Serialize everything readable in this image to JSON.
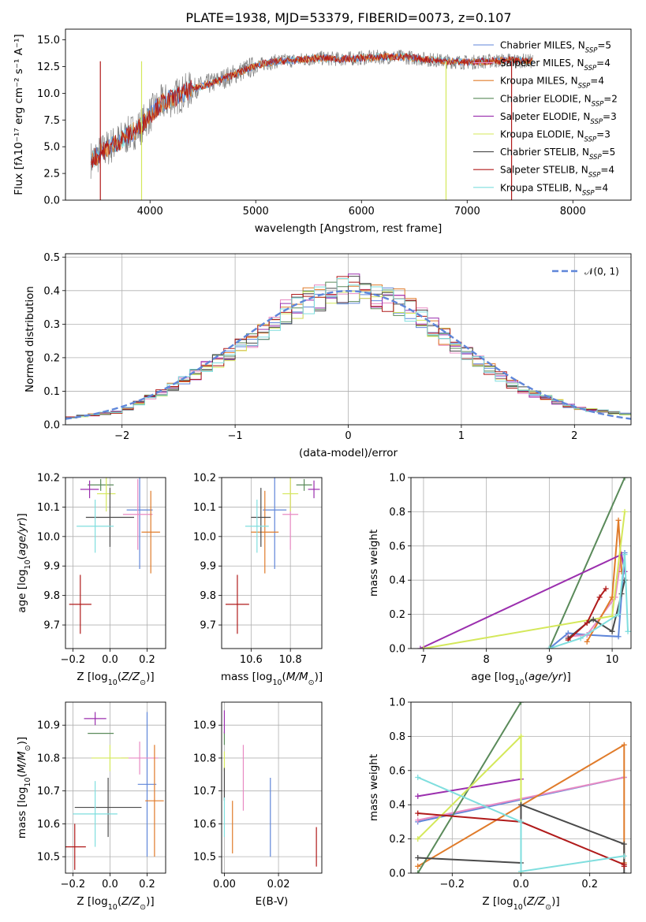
{
  "figure_title": "PLATE=1938, MJD=53379, FIBERID=0073, z=0.107",
  "colors": {
    "Chabrier MILES": "#5f86d9",
    "Salpeter MILES": "#e88ac3",
    "Kroupa MILES": "#e07b2a",
    "Chabrier ELODIE": "#5a8a5a",
    "Salpeter ELODIE": "#9b2fae",
    "Kroupa ELODIE": "#d4e85a",
    "Chabrier STELIB": "#4a4a4a",
    "Salpeter STELIB": "#b01a1a",
    "Kroupa STELIB": "#7fdede",
    "data": "#808080",
    "gaussian": "#5f86d9"
  },
  "chart_data": [
    {
      "type": "line",
      "title": "PLATE=1938, MJD=53379, FIBERID=0073, z=0.107",
      "xlabel": "wavelength [Angstrom, rest frame]",
      "ylabel": "Flux [fλ10⁻¹⁷ erg cm⁻² s⁻¹ A⁻¹]",
      "xlim": [
        3200,
        8550
      ],
      "ylim": [
        0,
        16
      ],
      "xticks": [
        "4000",
        "5000",
        "6000",
        "7000",
        "8000"
      ],
      "yticks": [
        "0.0",
        "2.5",
        "5.0",
        "7.5",
        "10.0",
        "12.5",
        "15.0"
      ],
      "grid": false,
      "legend": "upper right",
      "continuum": {
        "x": [
          3450,
          3600,
          3750,
          3900,
          4000,
          4100,
          4250,
          4400,
          4600,
          4800,
          5000,
          5200,
          5400,
          5600,
          5800,
          6000,
          6200,
          6400,
          6600,
          6800,
          7000,
          7200,
          7400,
          7600
        ],
        "y": [
          3.8,
          4.9,
          5.8,
          6.8,
          8.0,
          9.0,
          9.7,
          10.4,
          11.0,
          11.8,
          12.6,
          13.0,
          13.1,
          13.3,
          13.2,
          13.3,
          13.4,
          13.4,
          13.2,
          13.0,
          12.9,
          13.0,
          13.1,
          13.0
        ]
      },
      "series": [
        {
          "name": "Chabrier MILES, N$_{SSP}$=5"
        },
        {
          "name": "Salpeter MILES, N$_{SSP}$=4"
        },
        {
          "name": "Kroupa MILES, N$_{SSP}$=4"
        },
        {
          "name": "Chabrier ELODIE, N$_{SSP}$=2"
        },
        {
          "name": "Salpeter ELODIE, N$_{SSP}$=3"
        },
        {
          "name": "Kroupa ELODIE, N$_{SSP}$=3"
        },
        {
          "name": "Chabrier STELIB, N$_{SSP}$=5"
        },
        {
          "name": "Salpeter STELIB, N$_{SSP}$=4"
        },
        {
          "name": "Kroupa STELIB, N$_{SSP}$=4"
        }
      ]
    },
    {
      "type": "line",
      "xlabel": "(data-model)/error",
      "ylabel": "Normed distribution",
      "xlim": [
        -2.5,
        2.5
      ],
      "ylim": [
        0,
        0.51
      ],
      "xticks": [
        "−2",
        "−1",
        "0",
        "1",
        "2"
      ],
      "yticks": [
        "0.0",
        "0.1",
        "0.2",
        "0.3",
        "0.4",
        "0.5"
      ],
      "grid": true,
      "legend": "upper right",
      "legend_label": "𝒩(0, 1)",
      "bin_width": 0.1,
      "histogram_envelope": {
        "x": [
          -2.5,
          -2.0,
          -1.5,
          -1.0,
          -0.5,
          0.0,
          0.5,
          1.0,
          1.5,
          2.0,
          2.5
        ],
        "y": [
          0.02,
          0.04,
          0.12,
          0.22,
          0.35,
          0.41,
          0.36,
          0.22,
          0.11,
          0.05,
          0.03
        ]
      }
    },
    {
      "type": "scatter",
      "xlabel": "Z [log₁₀(Z/Z⊙)]",
      "ylabel": "age  [log₁₀(age/yr)]",
      "xlim": [
        -0.24,
        0.3
      ],
      "ylim": [
        9.62,
        10.2
      ],
      "xticks": [
        "−0.2",
        "0.0",
        "0.2"
      ],
      "yticks": [
        "9.7",
        "9.8",
        "9.9",
        "10.0",
        "10.1",
        "10.2"
      ],
      "grid": true,
      "points": [
        {
          "s": "Chabrier MILES",
          "x": 0.16,
          "y": 10.09,
          "xe": 0.07,
          "ye": 0.2
        },
        {
          "s": "Salpeter MILES",
          "x": 0.15,
          "y": 10.075,
          "xe": 0.08,
          "ye": 0.12
        },
        {
          "s": "Kroupa MILES",
          "x": 0.22,
          "y": 10.015,
          "xe": 0.05,
          "ye": 0.14
        },
        {
          "s": "Chabrier ELODIE",
          "x": -0.05,
          "y": 10.175,
          "xe": 0.07,
          "ye": 0.02
        },
        {
          "s": "Salpeter ELODIE",
          "x": -0.11,
          "y": 10.16,
          "xe": 0.05,
          "ye": 0.03
        },
        {
          "s": "Kroupa ELODIE",
          "x": -0.02,
          "y": 10.145,
          "xe": 0.05,
          "ye": 0.06
        },
        {
          "s": "Chabrier STELIB",
          "x": 0.0,
          "y": 10.065,
          "xe": 0.13,
          "ye": 0.1
        },
        {
          "s": "Salpeter STELIB",
          "x": -0.16,
          "y": 9.77,
          "xe": 0.06,
          "ye": 0.1
        },
        {
          "s": "Kroupa STELIB",
          "x": -0.08,
          "y": 10.035,
          "xe": 0.1,
          "ye": 0.09
        }
      ]
    },
    {
      "type": "scatter",
      "xlabel": "mass [log₁₀(M/M⊙)]",
      "xlim": [
        10.45,
        10.96
      ],
      "ylim": [
        9.62,
        10.2
      ],
      "xticks": [
        "10.6",
        "10.8"
      ],
      "yticks": [
        "9.7",
        "9.8",
        "9.9",
        "10.0",
        "10.1",
        "10.2"
      ],
      "grid": true,
      "points": [
        {
          "s": "Chabrier MILES",
          "x": 10.72,
          "y": 10.09,
          "xe": 0.06,
          "ye": 0.2
        },
        {
          "s": "Salpeter MILES",
          "x": 10.8,
          "y": 10.075,
          "xe": 0.04,
          "ye": 0.12
        },
        {
          "s": "Kroupa MILES",
          "x": 10.67,
          "y": 10.015,
          "xe": 0.07,
          "ye": 0.14
        },
        {
          "s": "Chabrier ELODIE",
          "x": 10.87,
          "y": 10.175,
          "xe": 0.04,
          "ye": 0.02
        },
        {
          "s": "Salpeter ELODIE",
          "x": 10.92,
          "y": 10.16,
          "xe": 0.03,
          "ye": 0.03
        },
        {
          "s": "Kroupa ELODIE",
          "x": 10.8,
          "y": 10.145,
          "xe": 0.04,
          "ye": 0.06
        },
        {
          "s": "Chabrier STELIB",
          "x": 10.65,
          "y": 10.065,
          "xe": 0.05,
          "ye": 0.1
        },
        {
          "s": "Salpeter STELIB",
          "x": 10.53,
          "y": 9.77,
          "xe": 0.06,
          "ye": 0.1
        },
        {
          "s": "Kroupa STELIB",
          "x": 10.63,
          "y": 10.035,
          "xe": 0.06,
          "ye": 0.09
        }
      ]
    },
    {
      "type": "line",
      "xlabel": "age  [log₁₀(age/yr)]",
      "ylabel": "mass weight",
      "xlim": [
        6.8,
        10.3
      ],
      "ylim": [
        0,
        1.0
      ],
      "xticks": [
        "7",
        "8",
        "9",
        "10"
      ],
      "yticks": [
        "0.0",
        "0.2",
        "0.4",
        "0.6",
        "0.8",
        "1.0"
      ],
      "grid": true,
      "series": [
        {
          "name": "Chabrier MILES",
          "x": [
            9.0,
            9.3,
            9.6,
            10.1,
            10.2
          ],
          "y": [
            0.0,
            0.09,
            0.08,
            0.07,
            0.56
          ]
        },
        {
          "name": "Salpeter MILES",
          "x": [
            9.3,
            9.6,
            10.05,
            10.15
          ],
          "y": [
            0.07,
            0.08,
            0.3,
            0.55
          ]
        },
        {
          "name": "Kroupa MILES",
          "x": [
            9.6,
            10.0,
            10.1,
            10.15
          ],
          "y": [
            0.04,
            0.3,
            0.75,
            0.45
          ]
        },
        {
          "name": "Chabrier ELODIE",
          "x": [
            9.0,
            10.2
          ],
          "y": [
            0.0,
            1.0
          ]
        },
        {
          "name": "Salpeter ELODIE",
          "x": [
            6.95,
            10.15,
            10.2
          ],
          "y": [
            0.0,
            0.55,
            0.45
          ]
        },
        {
          "name": "Kroupa ELODIE",
          "x": [
            7.0,
            10.0,
            10.2
          ],
          "y": [
            0.0,
            0.19,
            0.8
          ]
        },
        {
          "name": "Chabrier STELIB",
          "x": [
            9.3,
            9.6,
            9.7,
            10.0,
            10.15,
            10.2
          ],
          "y": [
            0.06,
            0.15,
            0.17,
            0.1,
            0.32,
            0.4
          ]
        },
        {
          "name": "Salpeter STELIB",
          "x": [
            9.3,
            9.6,
            9.8,
            9.9
          ],
          "y": [
            0.05,
            0.15,
            0.3,
            0.35
          ]
        },
        {
          "name": "Kroupa STELIB",
          "x": [
            9.0,
            9.5,
            10.1,
            10.2,
            10.25
          ],
          "y": [
            0.0,
            0.06,
            0.2,
            0.55,
            0.1
          ]
        }
      ]
    },
    {
      "type": "scatter",
      "xlabel": "Z [log₁₀(Z/Z⊙)]",
      "ylabel": "mass [log₁₀(M/M⊙)]",
      "xlim": [
        -0.24,
        0.3
      ],
      "ylim": [
        10.45,
        10.97
      ],
      "xticks": [
        "−0.2",
        "0.0",
        "0.2"
      ],
      "yticks": [
        "10.5",
        "10.6",
        "10.7",
        "10.8",
        "10.9"
      ],
      "grid": true,
      "points": [
        {
          "s": "Chabrier MILES",
          "x": 0.2,
          "y": 10.72,
          "xe": 0.05,
          "ye": 0.22
        },
        {
          "s": "Salpeter MILES",
          "x": 0.16,
          "y": 10.8,
          "xe": 0.1,
          "ye": 0.05
        },
        {
          "s": "Kroupa MILES",
          "x": 0.24,
          "y": 10.67,
          "xe": 0.05,
          "ye": 0.17
        },
        {
          "s": "Chabrier ELODIE",
          "x": -0.05,
          "y": 10.875,
          "xe": 0.07,
          "ye": 0.0
        },
        {
          "s": "Salpeter ELODIE",
          "x": -0.08,
          "y": 10.92,
          "xe": 0.06,
          "ye": 0.02
        },
        {
          "s": "Kroupa ELODIE",
          "x": 0.0,
          "y": 10.8,
          "xe": 0.1,
          "ye": 0.04
        },
        {
          "s": "Chabrier STELIB",
          "x": -0.01,
          "y": 10.65,
          "xe": 0.18,
          "ye": 0.09
        },
        {
          "s": "Salpeter STELIB",
          "x": -0.19,
          "y": 10.53,
          "xe": 0.06,
          "ye": 0.07
        },
        {
          "s": "Kroupa STELIB",
          "x": -0.08,
          "y": 10.63,
          "xe": 0.12,
          "ye": 0.1
        }
      ]
    },
    {
      "type": "scatter",
      "xlabel": "E(B-V)",
      "xlim": [
        -0.001,
        0.036
      ],
      "ylim": [
        10.45,
        10.97
      ],
      "xticks": [
        "0.00",
        "0.02"
      ],
      "yticks": [
        "10.5",
        "10.6",
        "10.7",
        "10.8",
        "10.9"
      ],
      "grid": true,
      "points": [
        {
          "s": "Chabrier MILES",
          "x": 0.017,
          "y": 10.62,
          "xe": 0,
          "ye": 0.12
        },
        {
          "s": "Salpeter MILES",
          "x": 0.007,
          "y": 10.74,
          "xe": 0,
          "ye": 0.1
        },
        {
          "s": "Kroupa MILES",
          "x": 0.003,
          "y": 10.59,
          "xe": 0,
          "ye": 0.08
        },
        {
          "s": "Chabrier ELODIE",
          "x": 0.0,
          "y": 10.86,
          "xe": 0,
          "ye": 0.02
        },
        {
          "s": "Salpeter ELODIE",
          "x": 0.0,
          "y": 10.91,
          "xe": 0,
          "ye": 0.035
        },
        {
          "s": "Kroupa ELODIE",
          "x": 0.0,
          "y": 10.79,
          "xe": 0,
          "ye": 0.03
        },
        {
          "s": "Chabrier STELIB",
          "x": 0.0,
          "y": 10.72,
          "xe": 0,
          "ye": 0.05
        },
        {
          "s": "Salpeter STELIB",
          "x": 0.034,
          "y": 10.53,
          "xe": 0,
          "ye": 0.06
        },
        {
          "s": "Kroupa STELIB",
          "x": 0.0,
          "y": 10.62,
          "xe": 0,
          "ye": 0.06
        }
      ]
    },
    {
      "type": "line",
      "xlabel": "Z [log₁₀(Z/Z⊙)]",
      "ylabel": "mass weight",
      "xlim": [
        -0.32,
        0.32
      ],
      "ylim": [
        0,
        1.0
      ],
      "xticks": [
        "−0.2",
        "0.0",
        "0.2"
      ],
      "yticks": [
        "0.0",
        "0.2",
        "0.4",
        "0.6",
        "0.8",
        "1.0"
      ],
      "grid": true,
      "series": [
        {
          "name": "Chabrier MILES",
          "x": [
            -0.3,
            0.3
          ],
          "y": [
            0.3,
            0.56
          ]
        },
        {
          "name": "Salpeter MILES",
          "x": [
            -0.3,
            0.3
          ],
          "y": [
            0.31,
            0.56
          ]
        },
        {
          "name": "Kroupa MILES",
          "x": [
            -0.3,
            0.3,
            0.3
          ],
          "y": [
            0.04,
            0.75,
            0.06
          ]
        },
        {
          "name": "Chabrier ELODIE",
          "x": [
            -0.3,
            0.0
          ],
          "y": [
            0.0,
            1.0
          ]
        },
        {
          "name": "Salpeter ELODIE",
          "x": [
            -0.3,
            0.0
          ],
          "y": [
            0.45,
            0.55
          ]
        },
        {
          "name": "Kroupa ELODIE",
          "x": [
            -0.3,
            0.0,
            0.0
          ],
          "y": [
            0.2,
            0.8,
            0.0
          ]
        },
        {
          "name": "Chabrier STELIB",
          "x": [
            -0.3,
            0.0,
            0.0,
            0.3,
            0.3
          ],
          "y": [
            0.09,
            0.06,
            0.4,
            0.17,
            0.0
          ]
        },
        {
          "name": "Salpeter STELIB",
          "x": [
            -0.3,
            0.0,
            0.3,
            0.3
          ],
          "y": [
            0.35,
            0.3,
            0.05,
            0.04
          ]
        },
        {
          "name": "Kroupa STELIB",
          "x": [
            -0.3,
            0.0,
            0.0,
            0.3
          ],
          "y": [
            0.56,
            0.3,
            0.01,
            0.1
          ]
        }
      ]
    }
  ]
}
